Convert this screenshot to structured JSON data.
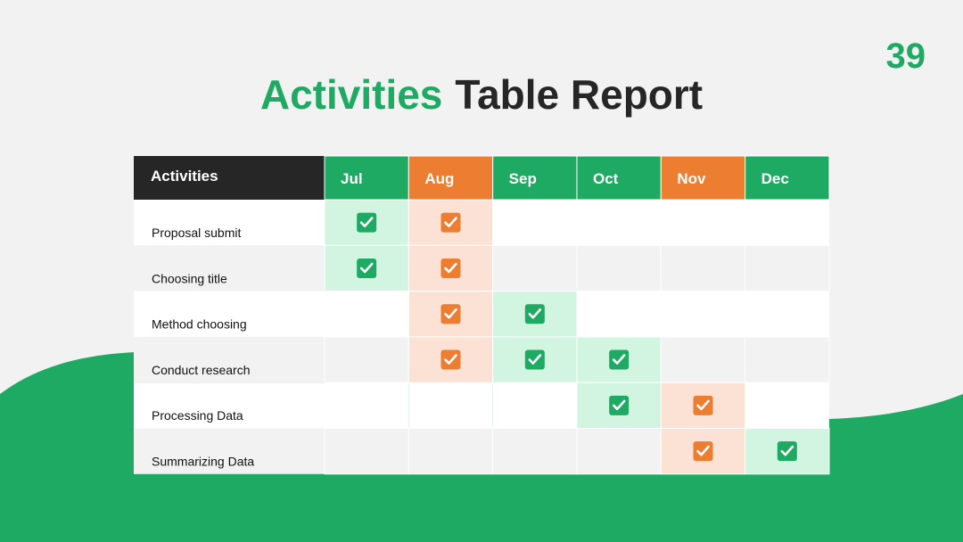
{
  "page_number": "39",
  "title": {
    "highlight": "Activities",
    "rest": "Table Report"
  },
  "table": {
    "header": {
      "label": "Activities",
      "color": "#262626"
    },
    "months": [
      {
        "label": "Jul",
        "color": "#1faa64",
        "light": "#d2f5e1"
      },
      {
        "label": "Aug",
        "color": "#ed7d31",
        "light": "#fbe2d5"
      },
      {
        "label": "Sep",
        "color": "#1faa64",
        "light": "#d2f5e1"
      },
      {
        "label": "Oct",
        "color": "#1faa64",
        "light": "#d2f5e1"
      },
      {
        "label": "Nov",
        "color": "#ed7d31",
        "light": "#fbe2d5"
      },
      {
        "label": "Dec",
        "color": "#1faa64",
        "light": "#d2f5e1"
      }
    ],
    "rows": [
      {
        "label": "Proposal submit",
        "checked": [
          true,
          true,
          false,
          false,
          false,
          false
        ]
      },
      {
        "label": "Choosing title",
        "checked": [
          true,
          true,
          false,
          false,
          false,
          false
        ]
      },
      {
        "label": "Method choosing",
        "checked": [
          false,
          true,
          true,
          false,
          false,
          false
        ]
      },
      {
        "label": "Conduct research",
        "checked": [
          false,
          true,
          true,
          true,
          false,
          false
        ]
      },
      {
        "label": "Processing Data",
        "checked": [
          false,
          false,
          false,
          true,
          true,
          false
        ]
      },
      {
        "label": "Summarizing Data",
        "checked": [
          false,
          false,
          false,
          false,
          true,
          true
        ]
      }
    ]
  }
}
